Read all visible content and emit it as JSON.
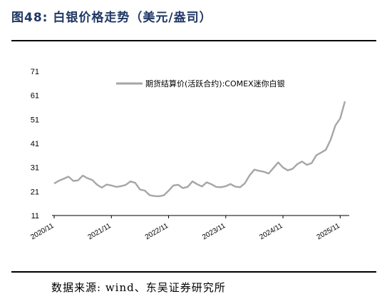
{
  "header": {
    "title": "图48: 白银价格走势（美元/盎司）"
  },
  "footer": {
    "source": "数据来源: wind、东吴证券研究所"
  },
  "chart_data": {
    "type": "line",
    "title": "图48: 白银价格走势（美元/盎司）",
    "xlabel": "",
    "ylabel": "",
    "ylim": [
      11,
      71
    ],
    "yticks": [
      11,
      21,
      31,
      41,
      51,
      61,
      71
    ],
    "xlim": [
      "2020-11",
      "2025-12"
    ],
    "xticks": [
      "2020/11",
      "2021/11",
      "2022/11",
      "2023/11",
      "2024/11",
      "2025/11"
    ],
    "legend": {
      "position": "top-right"
    },
    "series": [
      {
        "name": "期货结算价(活跃合约):COMEX迷你白银",
        "color": "#a6a6a6",
        "x": [
          "2020-11",
          "2020-12",
          "2021-01",
          "2021-02",
          "2021-03",
          "2021-04",
          "2021-05",
          "2021-06",
          "2021-07",
          "2021-08",
          "2021-09",
          "2021-10",
          "2021-11",
          "2021-12",
          "2022-01",
          "2022-02",
          "2022-03",
          "2022-04",
          "2022-05",
          "2022-06",
          "2022-07",
          "2022-08",
          "2022-09",
          "2022-10",
          "2022-11",
          "2022-12",
          "2023-01",
          "2023-02",
          "2023-03",
          "2023-04",
          "2023-05",
          "2023-06",
          "2023-07",
          "2023-08",
          "2023-09",
          "2023-10",
          "2023-11",
          "2023-12",
          "2024-01",
          "2024-02",
          "2024-03",
          "2024-04",
          "2024-05",
          "2024-06",
          "2024-07",
          "2024-08",
          "2024-09",
          "2024-10",
          "2024-11",
          "2024-12",
          "2025-01",
          "2025-02",
          "2025-03",
          "2025-04",
          "2025-05",
          "2025-06",
          "2025-07",
          "2025-08",
          "2025-09",
          "2025-10",
          "2025-11",
          "2025-12"
        ],
        "values": [
          24.3,
          25.5,
          26.3,
          27.2,
          25.4,
          25.6,
          27.6,
          26.5,
          25.8,
          23.8,
          22.6,
          23.9,
          23.5,
          22.9,
          23.2,
          23.7,
          25.2,
          24.6,
          21.8,
          21.4,
          19.5,
          19.1,
          19.0,
          19.4,
          21.3,
          23.5,
          23.8,
          22.4,
          22.9,
          25.2,
          24.0,
          23.1,
          24.8,
          24.0,
          22.9,
          22.8,
          23.2,
          24.1,
          23.0,
          22.8,
          24.4,
          27.7,
          30.1,
          29.6,
          29.2,
          28.5,
          30.8,
          33.1,
          31.0,
          29.8,
          30.4,
          32.4,
          33.5,
          32.1,
          32.8,
          36.1,
          37.2,
          38.4,
          42.5,
          48.5,
          51.4,
          58.5
        ]
      }
    ]
  }
}
